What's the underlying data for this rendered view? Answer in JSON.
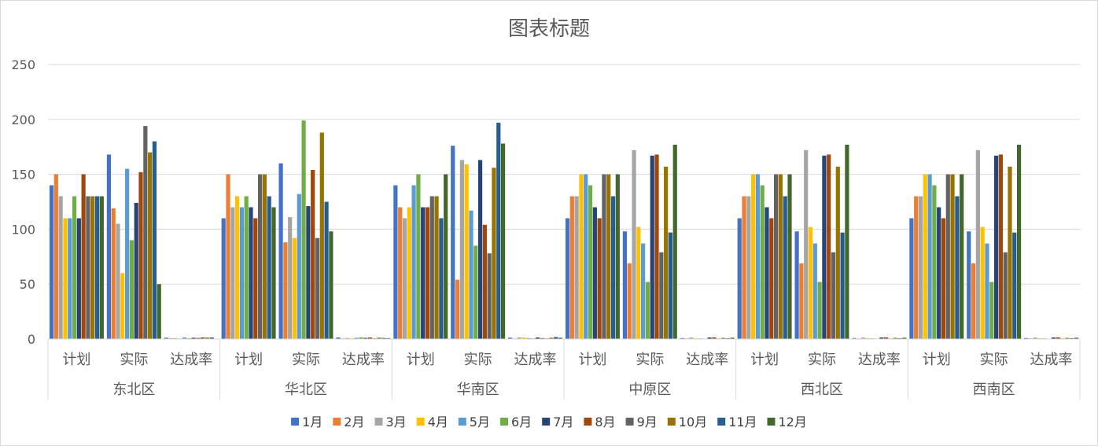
{
  "chart_data": {
    "type": "bar",
    "title": "图表标题",
    "xlabel": "",
    "ylabel": "",
    "ylim": [
      0,
      250
    ],
    "yticks": [
      0,
      50,
      100,
      150,
      200,
      250
    ],
    "grid": true,
    "legend_position": "bottom",
    "groups": [
      "东北区",
      "华北区",
      "华南区",
      "中原区",
      "西北区",
      "西南区"
    ],
    "subcategories": [
      "计划",
      "实际",
      "达成率"
    ],
    "series": [
      {
        "name": "1月",
        "color": "#4472C4",
        "values": [
          140,
          168,
          1.2,
          110,
          160,
          1.45,
          140,
          176,
          1.26,
          110,
          98,
          0.89,
          110,
          98,
          0.89,
          110,
          98,
          0.89
        ]
      },
      {
        "name": "2月",
        "color": "#ED7D31",
        "values": [
          150,
          119,
          0.79,
          150,
          88,
          0.59,
          120,
          54,
          0.45,
          130,
          69,
          0.53,
          130,
          69,
          0.53,
          130,
          69,
          0.53
        ]
      },
      {
        "name": "3月",
        "color": "#A5A5A5",
        "values": [
          130,
          105,
          0.81,
          120,
          111,
          0.93,
          110,
          163,
          1.48,
          130,
          172,
          1.32,
          130,
          172,
          1.32,
          130,
          172,
          1.32
        ]
      },
      {
        "name": "4月",
        "color": "#FFC000",
        "values": [
          110,
          60,
          0.55,
          130,
          92,
          0.71,
          120,
          159,
          1.33,
          150,
          102,
          0.68,
          150,
          102,
          0.68,
          150,
          102,
          0.68
        ]
      },
      {
        "name": "5月",
        "color": "#5B9BD5",
        "values": [
          110,
          155,
          1.41,
          120,
          132,
          1.1,
          140,
          117,
          0.84,
          150,
          87,
          0.58,
          150,
          87,
          0.58,
          150,
          87,
          0.58
        ]
      },
      {
        "name": "6月",
        "color": "#70AD47",
        "values": [
          130,
          90,
          0.69,
          130,
          199,
          1.53,
          150,
          85,
          0.57,
          140,
          52,
          0.37,
          140,
          52,
          0.37,
          140,
          52,
          0.37
        ]
      },
      {
        "name": "7月",
        "color": "#264478",
        "values": [
          110,
          124,
          1.13,
          120,
          121,
          1.01,
          120,
          163,
          1.36,
          120,
          167,
          1.39,
          120,
          167,
          1.39,
          120,
          167,
          1.39
        ]
      },
      {
        "name": "8月",
        "color": "#9E480E",
        "values": [
          150,
          152,
          1.01,
          110,
          154,
          1.4,
          120,
          104,
          0.87,
          110,
          168,
          1.53,
          110,
          168,
          1.53,
          110,
          168,
          1.53
        ]
      },
      {
        "name": "9月",
        "color": "#636363",
        "values": [
          130,
          194,
          1.49,
          150,
          92,
          0.61,
          130,
          78,
          0.6,
          150,
          79,
          0.53,
          150,
          79,
          0.53,
          150,
          79,
          0.53
        ]
      },
      {
        "name": "10月",
        "color": "#997300",
        "values": [
          130,
          170,
          1.31,
          150,
          188,
          1.25,
          130,
          156,
          1.2,
          150,
          157,
          1.05,
          150,
          157,
          1.05,
          150,
          157,
          1.05
        ]
      },
      {
        "name": "11月",
        "color": "#255E91",
        "values": [
          130,
          180,
          1.38,
          130,
          125,
          0.96,
          110,
          197,
          1.79,
          130,
          97,
          0.75,
          130,
          97,
          0.75,
          130,
          97,
          0.75
        ]
      },
      {
        "name": "12月",
        "color": "#43682B",
        "values": [
          130,
          50,
          0.38,
          120,
          98,
          0.82,
          150,
          178,
          1.19,
          150,
          177,
          1.18,
          150,
          177,
          1.18,
          150,
          177,
          1.18
        ]
      }
    ]
  }
}
